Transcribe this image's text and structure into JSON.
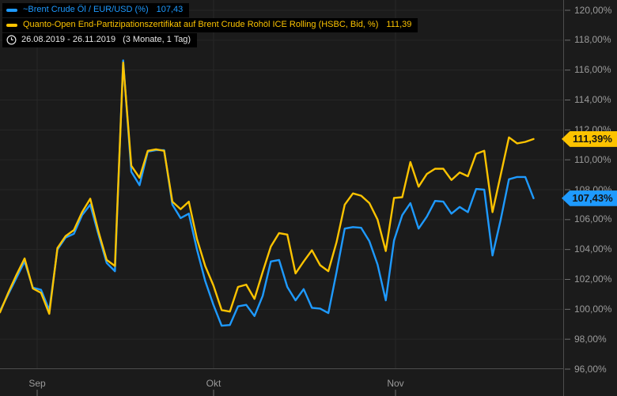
{
  "legend": {
    "series": [
      {
        "label": "~Brent Crude Öl / EUR/USD (%)",
        "value": "107,43",
        "color": "#1e9aff"
      },
      {
        "label": "Quanto-Open End-Partizipationszertifikat auf Brent Crude Rohöl ICE Rolling (HSBC, Bid, %)",
        "value": "111,39",
        "color": "#fcc300"
      }
    ],
    "period": {
      "range": "26.08.2019 - 26.11.2019",
      "detail": "(3 Monate, 1 Tag)"
    }
  },
  "badges": [
    {
      "text": "111,39%",
      "value": 111.39,
      "color": "#fcc300",
      "series": "certificate"
    },
    {
      "text": "107,43%",
      "value": 107.43,
      "color": "#1e9aff",
      "series": "brent"
    }
  ],
  "colors": {
    "background": "#1b1b1b",
    "grid": "#272727",
    "axis_line": "#4d4d4d",
    "tick": "#6e6e6e",
    "axis_text": "#9b9b9b",
    "blue_series": "#1e9aff",
    "yellow_series": "#fcc300",
    "legend_bg": "#000000"
  },
  "chart_data": {
    "type": "line",
    "title": "",
    "xlabel": "",
    "ylabel": "",
    "x_axis": {
      "start": "26.08.2019",
      "end": "26.11.2019",
      "months": [
        {
          "label": "Sep",
          "x": 47
        },
        {
          "label": "Okt",
          "x": 270
        },
        {
          "label": "Nov",
          "x": 500
        }
      ]
    },
    "y_axis": {
      "unit": "%",
      "min": 96,
      "max": 120,
      "step": 2,
      "tick_labels": [
        "120,00%",
        "118,00%",
        "116,00%",
        "114,00%",
        "112,00%",
        "110,00%",
        "108,00%",
        "106,00%",
        "104,00%",
        "102,00%",
        "100,00%",
        "98,00%",
        "96,00%"
      ]
    },
    "grid": true,
    "legend_position": "top-left",
    "series": [
      {
        "id": "line-blue",
        "name": "~Brent Crude Öl / EUR/USD (%)",
        "color": "#1e9aff",
        "last_value": 107.43,
        "values": [
          99.9,
          101.0,
          102.1,
          103.2,
          101.45,
          101.3,
          99.95,
          104.0,
          104.8,
          105.05,
          106.3,
          107.0,
          105.0,
          103.1,
          102.55,
          116.65,
          109.2,
          108.3,
          110.55,
          110.65,
          110.65,
          107.0,
          106.1,
          106.4,
          104.0,
          101.9,
          100.3,
          98.9,
          98.95,
          100.2,
          100.3,
          99.55,
          100.9,
          103.2,
          103.3,
          101.5,
          100.6,
          101.35,
          100.1,
          100.05,
          99.75,
          102.5,
          105.4,
          105.5,
          105.45,
          104.55,
          103.0,
          100.6,
          104.6,
          106.3,
          107.1,
          105.4,
          106.2,
          107.25,
          107.2,
          106.4,
          106.85,
          106.5,
          108.05,
          108.0,
          103.6,
          106.0,
          108.7,
          108.85,
          108.85,
          107.43
        ]
      },
      {
        "id": "line-yellow",
        "name": "Quanto-Open End-Partizipationszertifikat auf Brent Crude Rohöl ICE Rolling (HSBC, Bid, %)",
        "color": "#fcc300",
        "last_value": 111.39,
        "values": [
          99.8,
          101.1,
          102.3,
          103.4,
          101.4,
          101.1,
          99.7,
          104.1,
          104.9,
          105.3,
          106.5,
          107.4,
          105.2,
          103.3,
          102.9,
          116.5,
          109.6,
          108.8,
          110.6,
          110.7,
          110.6,
          107.2,
          106.7,
          107.2,
          104.7,
          102.9,
          101.6,
          99.95,
          99.85,
          101.5,
          101.65,
          100.7,
          102.5,
          104.2,
          105.1,
          105.0,
          102.4,
          103.2,
          103.95,
          102.95,
          102.55,
          104.5,
          107.0,
          107.75,
          107.6,
          107.1,
          106.0,
          103.9,
          107.45,
          107.5,
          109.85,
          108.2,
          109.05,
          109.4,
          109.4,
          108.65,
          109.15,
          108.9,
          110.4,
          110.6,
          106.5,
          109.0,
          111.5,
          111.1,
          111.2,
          111.39
        ]
      }
    ]
  }
}
